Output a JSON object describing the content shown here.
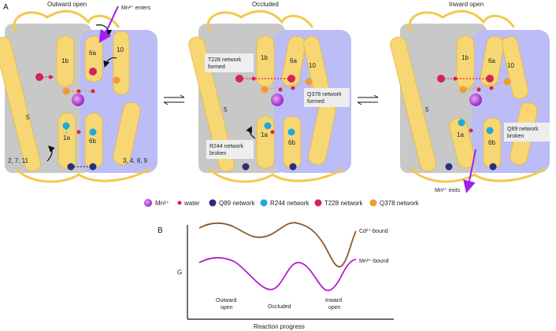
{
  "panel_a": {
    "label": "A",
    "states": [
      {
        "title": "Outward open",
        "helices": [
          "1b",
          "6a",
          "10",
          "5",
          "1a",
          "6b"
        ],
        "region_left": "2, 7, 11",
        "region_right": "3, 4, 8, 9",
        "annotation": "Mn²⁺ enters"
      },
      {
        "title": "Occluded",
        "helices": [
          "1b",
          "6a",
          "10",
          "5",
          "1a",
          "6b"
        ],
        "notes": [
          "T228 network formed",
          "Q378 network formed",
          "R244 network broken"
        ]
      },
      {
        "title": "Inward open",
        "helices": [
          "1b",
          "6a",
          "10",
          "5",
          "1a",
          "6b"
        ],
        "notes": [
          "Q89 network broken"
        ],
        "annotation": "Mn²⁺ exits"
      }
    ],
    "legend": [
      {
        "label": "Mn²⁺",
        "color": "#b23bd6"
      },
      {
        "label": "water",
        "color": "#e0243a"
      },
      {
        "label": "Q89 network",
        "color": "#2b2f7a"
      },
      {
        "label": "R244 network",
        "color": "#1fa9df"
      },
      {
        "label": "T228 network",
        "color": "#d4235a"
      },
      {
        "label": "Q378 network",
        "color": "#f29a2e"
      }
    ]
  },
  "panel_b": {
    "label": "B",
    "ylabel": "G",
    "xlabel": "Reaction progress",
    "curves": [
      {
        "label": "Cd²⁺-bound",
        "color": "#8b5a2b"
      },
      {
        "label": "Mn²⁺-bound",
        "color": "#b21fd0"
      }
    ],
    "states": [
      "Outward open",
      "Occluded",
      "Inward open"
    ]
  }
}
